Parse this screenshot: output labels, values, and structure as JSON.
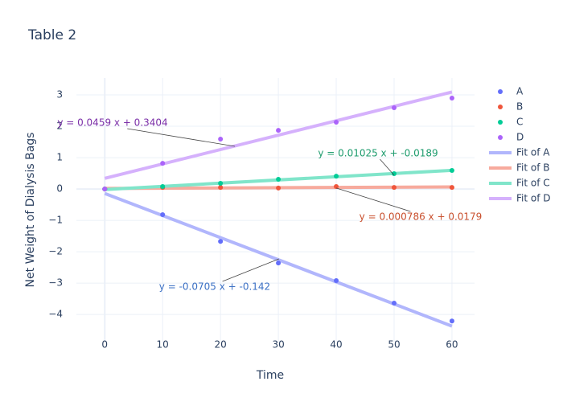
{
  "chart_data": {
    "type": "scatter",
    "title": "Table 2",
    "x_label": "Time",
    "y_label": "Net Weight of Dialysis Bags",
    "xlim": [
      -4.9,
      63.9
    ],
    "ylim": [
      -4.87,
      3.54
    ],
    "xticks": [
      0,
      10,
      20,
      30,
      40,
      50,
      60
    ],
    "yticks": [
      {
        "value": -4,
        "label": "−4"
      },
      {
        "value": -3,
        "label": "−3"
      },
      {
        "value": -2,
        "label": "−2"
      },
      {
        "value": -1,
        "label": "−1"
      },
      0,
      1,
      2,
      3
    ],
    "grid": true,
    "series": [
      {
        "name": "A",
        "mode": "markers",
        "color": "#636efa",
        "x": [
          0,
          10,
          20,
          30,
          40,
          50,
          60
        ],
        "values": [
          0,
          -0.82,
          -1.67,
          -2.36,
          -2.92,
          -3.64,
          -4.21
        ]
      },
      {
        "name": "B",
        "mode": "markers",
        "color": "#ef553b",
        "x": [
          0,
          10,
          20,
          30,
          40,
          50,
          60
        ],
        "values": [
          0,
          0.05,
          0.05,
          0.03,
          0.08,
          0.05,
          0.05
        ]
      },
      {
        "name": "C",
        "mode": "markers",
        "color": "#00cc96",
        "x": [
          0,
          10,
          20,
          30,
          40,
          50,
          60
        ],
        "values": [
          0,
          0.08,
          0.18,
          0.31,
          0.41,
          0.49,
          0.59
        ]
      },
      {
        "name": "D",
        "mode": "markers",
        "color": "#ab63fa",
        "x": [
          0,
          10,
          20,
          30,
          40,
          50,
          60
        ],
        "values": [
          0,
          0.82,
          1.59,
          1.87,
          2.13,
          2.59,
          2.9
        ]
      },
      {
        "name": "Fit of A",
        "mode": "lines",
        "color": "#b1b6fc",
        "x": [
          0,
          60
        ],
        "values": [
          -0.142,
          -4.372
        ]
      },
      {
        "name": "Fit of B",
        "mode": "lines",
        "color": "#f7aa9d",
        "x": [
          0,
          60
        ],
        "values": [
          0.0179,
          0.0651
        ]
      },
      {
        "name": "Fit of C",
        "mode": "lines",
        "color": "#80e5ca",
        "x": [
          0,
          60
        ],
        "values": [
          -0.0189,
          0.5961
        ]
      },
      {
        "name": "Fit of D",
        "mode": "lines",
        "color": "#d5b1fc",
        "x": [
          0,
          60
        ],
        "values": [
          0.3404,
          3.0944
        ]
      }
    ],
    "annotations": [
      {
        "text": "y = 0.0459 x + 0.3404",
        "x": 22.5,
        "y": 1.36,
        "color": "#7b2fa8"
      },
      {
        "text": "y = 0.01025 x + -0.0189",
        "x": 50,
        "y": 0.44,
        "color": "#1e9c6e"
      },
      {
        "text": "y = 0.000786 x + 0.0179",
        "x": 40,
        "y": 0.03,
        "color": "#c9502e"
      },
      {
        "text": "y = -0.0705 x + -0.142",
        "x": 30.1,
        "y": -2.23,
        "color": "#3b70c4"
      }
    ]
  }
}
